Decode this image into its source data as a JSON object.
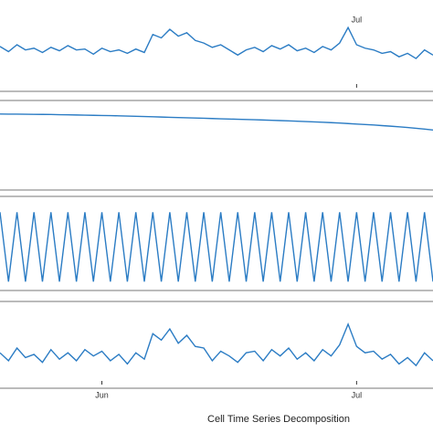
{
  "caption": "Cell Time Series Decomposition",
  "chart_data": [
    {
      "type": "line",
      "color": "#2b7cc4",
      "ylim": [
        0,
        100
      ],
      "categories": [
        null,
        null,
        null,
        null,
        null,
        null,
        null,
        null,
        null,
        null,
        null,
        null,
        null,
        null,
        null,
        null,
        null,
        null,
        null,
        null,
        null,
        null,
        null,
        null,
        null,
        null,
        null,
        null,
        null,
        null,
        null,
        null,
        null,
        null,
        null,
        null,
        null,
        null,
        null,
        null,
        null,
        null,
        "Jul",
        null,
        null,
        null,
        null,
        null,
        null,
        null,
        null,
        null
      ],
      "values": [
        48,
        42,
        50,
        44,
        46,
        41,
        47,
        43,
        49,
        44,
        45,
        39,
        46,
        42,
        44,
        40,
        45,
        41,
        62,
        58,
        68,
        60,
        64,
        55,
        52,
        47,
        50,
        44,
        38,
        44,
        47,
        42,
        49,
        45,
        50,
        43,
        46,
        41,
        48,
        44,
        52,
        70,
        50,
        46,
        44,
        40,
        42,
        36,
        40,
        34,
        44,
        38
      ]
    },
    {
      "type": "line",
      "color": "#2b7cc4",
      "ylim": [
        0,
        100
      ],
      "values": [
        88,
        87.9,
        87.8,
        87.7,
        87.6,
        87.5,
        87.4,
        87.2,
        87,
        86.8,
        86.6,
        86.4,
        86.2,
        86,
        85.8,
        85.5,
        85.2,
        84.9,
        84.6,
        84.3,
        84,
        83.7,
        83.4,
        83.1,
        82.8,
        82.5,
        82.2,
        81.9,
        81.6,
        81.3,
        81,
        80.7,
        80.4,
        80,
        79.6,
        79.2,
        78.8,
        78.4,
        78,
        77.5,
        77,
        76.4,
        75.8,
        75.2,
        74.6,
        73.9,
        73.2,
        72.4,
        71.6,
        70.6,
        69.6,
        68.5
      ]
    },
    {
      "type": "line",
      "color": "#2b7cc4",
      "ylim": [
        0,
        100
      ],
      "values": [
        86,
        6,
        86,
        6,
        86,
        6,
        86,
        6,
        86,
        6,
        86,
        6,
        86,
        6,
        86,
        6,
        86,
        6,
        86,
        6,
        86,
        6,
        86,
        6,
        86,
        6,
        86,
        6,
        86,
        6,
        86,
        6,
        86,
        6,
        86,
        6,
        86,
        6,
        86,
        6,
        86,
        6,
        86,
        6,
        86,
        6,
        86,
        6,
        86,
        6,
        86,
        6
      ]
    },
    {
      "type": "line",
      "color": "#2b7cc4",
      "ylim": [
        0,
        100
      ],
      "categories": [
        null,
        null,
        null,
        null,
        null,
        null,
        null,
        null,
        null,
        null,
        null,
        null,
        "Jun",
        null,
        null,
        null,
        null,
        null,
        null,
        null,
        null,
        null,
        null,
        null,
        null,
        null,
        null,
        null,
        null,
        null,
        null,
        null,
        null,
        null,
        null,
        null,
        null,
        null,
        null,
        null,
        null,
        null,
        "Jul",
        null,
        null,
        null,
        null,
        null,
        null,
        null,
        null,
        null
      ],
      "values": [
        40,
        30,
        46,
        34,
        38,
        28,
        44,
        32,
        40,
        30,
        44,
        36,
        42,
        30,
        38,
        26,
        40,
        32,
        64,
        56,
        70,
        52,
        62,
        48,
        46,
        30,
        42,
        36,
        28,
        40,
        42,
        30,
        44,
        36,
        46,
        32,
        40,
        30,
        44,
        36,
        50,
        76,
        48,
        40,
        42,
        32,
        38,
        26,
        34,
        24,
        40,
        30
      ]
    }
  ]
}
